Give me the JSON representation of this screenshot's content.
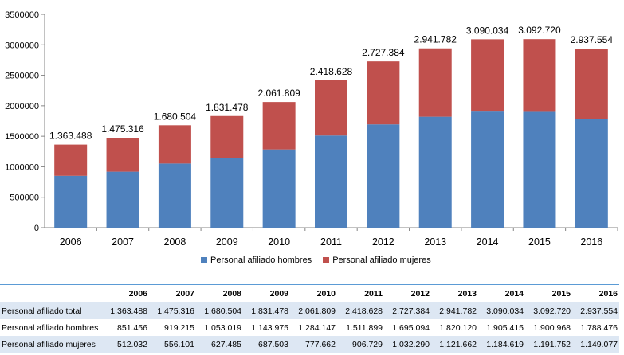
{
  "chart_data": {
    "type": "bar",
    "stacked": true,
    "categories": [
      "2006",
      "2007",
      "2008",
      "2009",
      "2010",
      "2011",
      "2012",
      "2013",
      "2014",
      "2015",
      "2016"
    ],
    "series": [
      {
        "name": "Personal afiliado hombres",
        "color": "#4f81bd",
        "values": [
          851456,
          919215,
          1053019,
          1143975,
          1284147,
          1511899,
          1695094,
          1820120,
          1905415,
          1900968,
          1788476
        ]
      },
      {
        "name": "Personal afiliado mujeres",
        "color": "#c0504d",
        "values": [
          512032,
          556101,
          627485,
          687503,
          777662,
          906729,
          1032290,
          1121662,
          1184619,
          1191752,
          1149077
        ]
      }
    ],
    "total_labels": [
      "1.363.488",
      "1.475.316",
      "1.680.504",
      "1.831.478",
      "2.061.809",
      "2.418.628",
      "2.727.384",
      "2.941.782",
      "3.090.034",
      "3.092.720",
      "2.937.554"
    ],
    "ylim": [
      0,
      3500000
    ],
    "yticks": [
      0,
      500000,
      1000000,
      1500000,
      2000000,
      2500000,
      3000000,
      3500000
    ],
    "grid": false,
    "legend": "bottom"
  },
  "legend": {
    "hombres": "Personal afiliado hombres",
    "mujeres": "Personal afiliado mujeres"
  },
  "table": {
    "header": [
      "2006",
      "2007",
      "2008",
      "2009",
      "2010",
      "2011",
      "2012",
      "2013",
      "2014",
      "2015",
      "2016"
    ],
    "rows": [
      {
        "label": "Personal afiliado total",
        "values": [
          "1.363.488",
          "1.475.316",
          "1.680.504",
          "1.831.478",
          "2.061.809",
          "2.418.628",
          "2.727.384",
          "2.941.782",
          "3.090.034",
          "3.092.720",
          "2.937.554"
        ]
      },
      {
        "label": "Personal afiliado hombres",
        "values": [
          "851.456",
          "919.215",
          "1.053.019",
          "1.143.975",
          "1.284.147",
          "1.511.899",
          "1.695.094",
          "1.820.120",
          "1.905.415",
          "1.900.968",
          "1.788.476"
        ]
      },
      {
        "label": "Personal afiliado mujeres",
        "values": [
          "512.032",
          "556.101",
          "627.485",
          "687.503",
          "777.662",
          "906.729",
          "1.032.290",
          "1.121.662",
          "1.184.619",
          "1.191.752",
          "1.149.077"
        ]
      }
    ]
  }
}
